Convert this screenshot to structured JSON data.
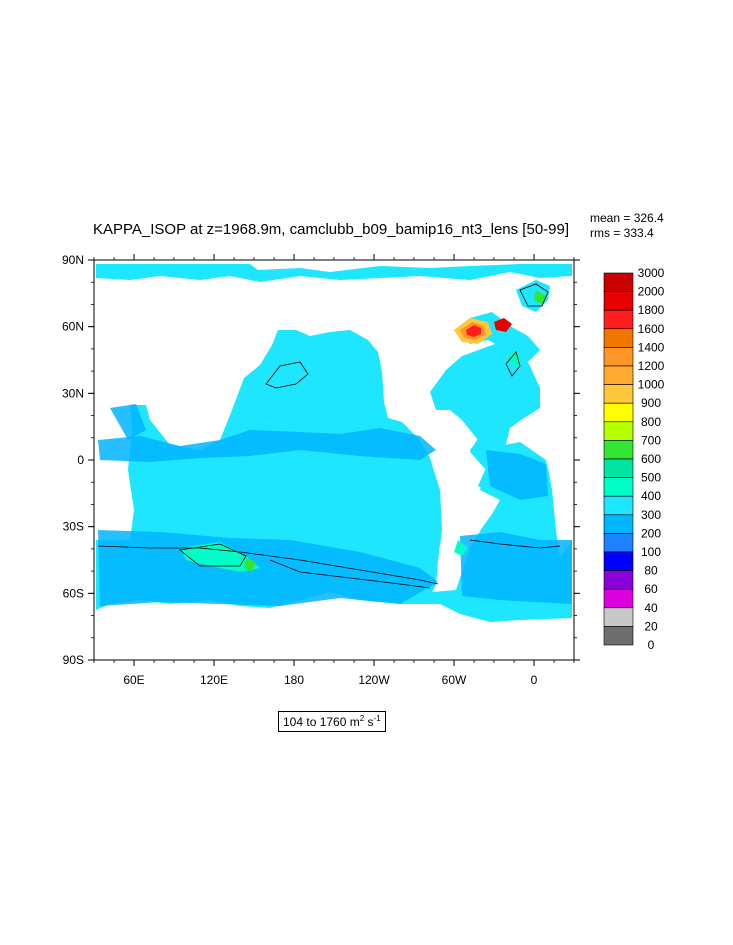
{
  "title": "KAPPA_ISOP at z=1968.9m, camclubb_b09_bamip16_nt3_lens [50-99]",
  "stats": {
    "mean": "mean = 326.4",
    "rms": "rms = 333.4"
  },
  "units": {
    "range": "104 to 1760 m",
    "exp1": "2",
    "mid": " s",
    "exp2": "-1"
  },
  "map": {
    "projection": "cylindrical-equidistant",
    "lon_range": [
      30,
      390
    ],
    "lat_range": [
      -90,
      90
    ],
    "ocean_color": "#1ee6ff",
    "land_color": "#ffffff",
    "y_ticks": [
      {
        "lat": 90,
        "label": "90N"
      },
      {
        "lat": 60,
        "label": "60N"
      },
      {
        "lat": 30,
        "label": "30N"
      },
      {
        "lat": 0,
        "label": "0"
      },
      {
        "lat": -30,
        "label": "30S"
      },
      {
        "lat": -60,
        "label": "60S"
      },
      {
        "lat": -90,
        "label": "90S"
      }
    ],
    "x_ticks": [
      {
        "lon": 60,
        "label": "60E"
      },
      {
        "lon": 120,
        "label": "120E"
      },
      {
        "lon": 180,
        "label": "180"
      },
      {
        "lon": 240,
        "label": "120W"
      },
      {
        "lon": 300,
        "label": "60W"
      },
      {
        "lon": 360,
        "label": "0"
      }
    ]
  },
  "colorbar": {
    "levels": [
      "3000",
      "2000",
      "1800",
      "1600",
      "1400",
      "1200",
      "1000",
      "900",
      "800",
      "700",
      "600",
      "500",
      "400",
      "300",
      "200",
      "100",
      "80",
      "60",
      "40",
      "20",
      "0"
    ],
    "colors": [
      "#c80000",
      "#e60000",
      "#ff1e1e",
      "#f07800",
      "#ff9628",
      "#ffaa32",
      "#ffc83c",
      "#ffff00",
      "#b4ff00",
      "#32e632",
      "#00e6a0",
      "#00ffc8",
      "#1ee6ff",
      "#00b4ff",
      "#1e82ff",
      "#0000ff",
      "#8c00dc",
      "#dc00dc",
      "#c8c8c8",
      "#6e6e6e"
    ]
  }
}
